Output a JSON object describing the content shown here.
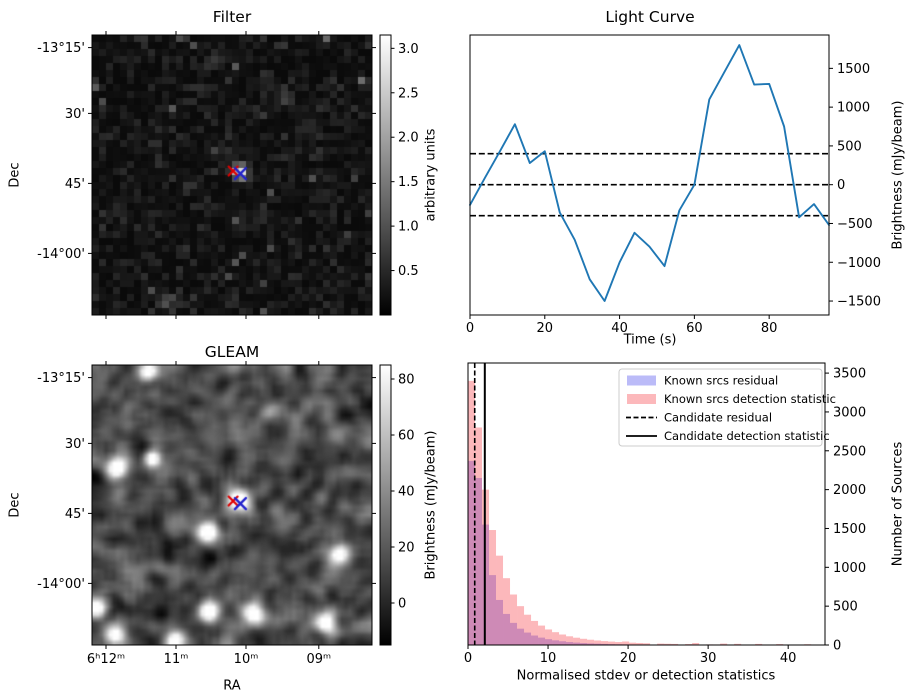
{
  "figure": {
    "background": "#ffffff"
  },
  "chart_data": [
    {
      "type": "heatmap",
      "title": "Filter",
      "ylabel": "Dec",
      "dec_tick_labels": [
        "-13°15'",
        "30'",
        "45'",
        "-14°00'"
      ],
      "colorbar": {
        "label": "arbitrary units",
        "ticks": [
          0.5,
          1.0,
          1.5,
          2.0,
          2.5,
          3.0
        ],
        "vmin": 0,
        "vmax": 3.15
      },
      "bright_sources": [
        {
          "x": 0.527,
          "y": 0.487,
          "amp": 2.9,
          "sigma": 5.0
        },
        {
          "x": 0.517,
          "y": 0.663,
          "amp": 0.85,
          "sigma": 4.0
        },
        {
          "x": 0.43,
          "y": 0.09,
          "amp": 0.65,
          "sigma": 4.0
        },
        {
          "x": 0.685,
          "y": 0.23,
          "amp": 0.6,
          "sigma": 4.0
        },
        {
          "x": 0.27,
          "y": 0.95,
          "amp": 0.95,
          "sigma": 4.5
        },
        {
          "x": 0.34,
          "y": 0.55,
          "amp": 0.5,
          "sigma": 3.5
        }
      ],
      "markers": [
        {
          "symbol": "x",
          "color": "#e00000",
          "x": 0.504,
          "y": 0.486
        },
        {
          "symbol": "x",
          "color": "#2222cc",
          "x": 0.53,
          "y": 0.495
        }
      ]
    },
    {
      "type": "line",
      "title": "Light Curve",
      "xlabel": "Time (s)",
      "ylabel": "Brightness (mJy/beam)",
      "x": [
        0,
        4,
        8,
        12,
        16,
        20,
        24,
        28,
        32,
        36,
        40,
        44,
        48,
        52,
        56,
        60,
        64,
        68,
        72,
        76,
        80,
        84,
        88,
        92,
        96
      ],
      "y": [
        -260,
        90,
        430,
        780,
        280,
        430,
        -360,
        -710,
        -1220,
        -1500,
        -1000,
        -620,
        -800,
        -1050,
        -330,
        0,
        1100,
        1450,
        1800,
        1290,
        1300,
        750,
        -420,
        -250,
        -520
      ],
      "x_ticks": [
        0,
        20,
        40,
        60,
        80
      ],
      "y_ticks": [
        -1500,
        -1000,
        -500,
        0,
        500,
        1000,
        1500
      ],
      "xlim": [
        0,
        96
      ],
      "ylim": [
        -1680,
        1930
      ],
      "line_color": "#1f77b4",
      "hlines": [
        {
          "y": 400,
          "style": "dashed"
        },
        {
          "y": 0,
          "style": "dashed"
        },
        {
          "y": -400,
          "style": "dashed"
        }
      ]
    },
    {
      "type": "heatmap",
      "title": "GLEAM",
      "xlabel": "RA",
      "ylabel": "Dec",
      "ra_tick_labels": [
        "6ʰ12ᵐ",
        "11ᵐ",
        "10ᵐ",
        "09ᵐ"
      ],
      "dec_tick_labels": [
        "-13°15'",
        "30'",
        "45'",
        "-14°00'"
      ],
      "colorbar": {
        "label": "Brightness (mJy/beam)",
        "ticks": [
          0,
          20,
          40,
          60,
          80
        ],
        "vmin": -15,
        "vmax": 85
      },
      "bright_sources": [
        {
          "x": 0.2,
          "y": 0.03,
          "amp": 95,
          "sigma": 1.6
        },
        {
          "x": 0.09,
          "y": 0.365,
          "amp": 100,
          "sigma": 1.7
        },
        {
          "x": 0.215,
          "y": 0.335,
          "amp": 90,
          "sigma": 1.5
        },
        {
          "x": 0.527,
          "y": 0.487,
          "amp": 115,
          "sigma": 1.9
        },
        {
          "x": 0.413,
          "y": 0.596,
          "amp": 105,
          "sigma": 1.7
        },
        {
          "x": 0.885,
          "y": 0.672,
          "amp": 100,
          "sigma": 1.7
        },
        {
          "x": 0.015,
          "y": 0.868,
          "amp": 105,
          "sigma": 1.8
        },
        {
          "x": 0.419,
          "y": 0.881,
          "amp": 110,
          "sigma": 1.9
        },
        {
          "x": 0.578,
          "y": 0.886,
          "amp": 95,
          "sigma": 1.9
        },
        {
          "x": 0.836,
          "y": 0.922,
          "amp": 100,
          "sigma": 1.7
        },
        {
          "x": 0.08,
          "y": 0.965,
          "amp": 90,
          "sigma": 1.7
        },
        {
          "x": 0.3,
          "y": 0.985,
          "amp": 85,
          "sigma": 1.6
        },
        {
          "x": 0.64,
          "y": 0.16,
          "amp": 32,
          "sigma": 1.6
        },
        {
          "x": 0.09,
          "y": 0.5,
          "amp": 28,
          "sigma": 1.8
        }
      ],
      "markers": [
        {
          "symbol": "x",
          "color": "#e00000",
          "x": 0.504,
          "y": 0.486
        },
        {
          "symbol": "x",
          "color": "#2222cc",
          "x": 0.53,
          "y": 0.495
        }
      ]
    },
    {
      "type": "bar",
      "xlabel": "Normalised stdev or detection statistics",
      "ylabel": "Number of Sources",
      "x_ticks": [
        0,
        10,
        20,
        30,
        40
      ],
      "y_ticks": [
        0,
        500,
        1000,
        1500,
        2000,
        2500,
        3000,
        3500
      ],
      "xlim": [
        0,
        44.6
      ],
      "ylim": [
        0,
        3630
      ],
      "bin_width": 0.875,
      "bin_start": 0,
      "series": [
        {
          "name": "Known srcs residual",
          "color": "rgba(60,60,235,0.35)",
          "values": [
            2370,
            2150,
            1550,
            900,
            580,
            400,
            285,
            210,
            160,
            122,
            95,
            75,
            60,
            48,
            38,
            31,
            25,
            20,
            17,
            14,
            11,
            9,
            8,
            6,
            5,
            4,
            4,
            3,
            3,
            2,
            2,
            2,
            1,
            1,
            1,
            1,
            1,
            1,
            0,
            0,
            0,
            0,
            0,
            0,
            0,
            0,
            0,
            0,
            0
          ]
        },
        {
          "name": "Known srcs detection statistic",
          "color": "rgba(245,35,45,0.32)",
          "values": [
            3400,
            2800,
            2000,
            1480,
            1150,
            860,
            650,
            500,
            390,
            310,
            250,
            200,
            165,
            135,
            112,
            94,
            80,
            68,
            58,
            50,
            44,
            38,
            45,
            30,
            26,
            22,
            0,
            18,
            16,
            14,
            0,
            12,
            25,
            0,
            8,
            7,
            18,
            0,
            15,
            5,
            0,
            14,
            4,
            0,
            12,
            0,
            3,
            0,
            10
          ]
        }
      ],
      "vlines": [
        {
          "name": "Candidate residual",
          "x": 0.84,
          "style": "dashed",
          "color": "#000000"
        },
        {
          "name": "Candidate detection statistic",
          "x": 2.1,
          "style": "solid",
          "color": "#000000"
        }
      ],
      "legend": [
        {
          "label": "Known srcs residual",
          "swatch": "patch",
          "color": "rgba(60,60,235,0.35)"
        },
        {
          "label": "Known srcs detection statistic",
          "swatch": "patch",
          "color": "rgba(245,35,45,0.32)"
        },
        {
          "label": "Candidate residual",
          "swatch": "dashed-line",
          "color": "#000000"
        },
        {
          "label": "Candidate detection statistic",
          "swatch": "solid-line",
          "color": "#000000"
        }
      ]
    }
  ]
}
